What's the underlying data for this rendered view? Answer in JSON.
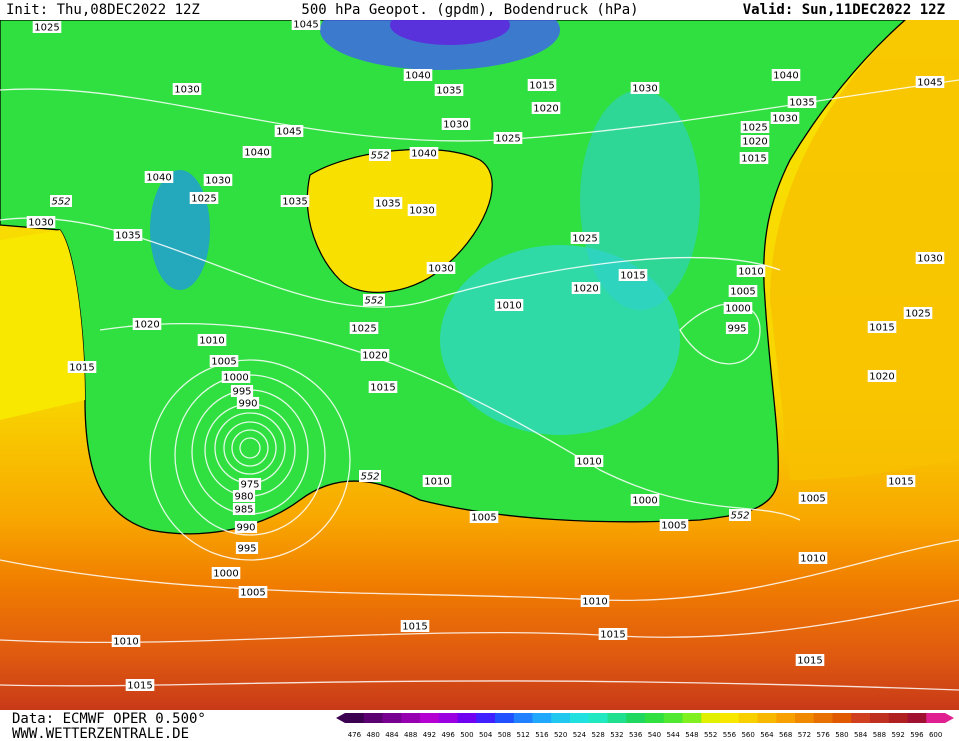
{
  "header": {
    "init": "Init: Thu,08DEC2022 12Z",
    "title": "500 hPa Geopot. (gpdm), Bodendruck (hPa)",
    "valid": "Valid: Sun,11DEC2022 12Z"
  },
  "footer": {
    "data": "Data: ECMWF OPER 0.500°",
    "site": "WWW.WETTERZENTRALE.DE"
  },
  "isobars": [
    1025,
    1030,
    1045,
    1040,
    1035,
    1030,
    1015,
    1020,
    1025,
    1030,
    1040,
    1035,
    1030,
    1025,
    1020,
    1015,
    1045,
    1045,
    1040,
    1040,
    1030,
    1025,
    1035,
    1035,
    1030,
    1040,
    1030,
    1035,
    1030,
    1025,
    1015,
    1020,
    1010,
    1005,
    1000,
    995,
    1010,
    1025,
    1020,
    1015,
    1020,
    1015,
    1010,
    1005,
    1000,
    995,
    990,
    975,
    980,
    985,
    990,
    995,
    1000,
    1005,
    1010,
    1015,
    1015,
    1010,
    1005,
    1010,
    1000,
    1005,
    1005,
    1010,
    1010,
    1015,
    1015,
    1015,
    1020,
    1015,
    1025,
    1030
  ],
  "geopotential_labels": [
    552,
    552,
    552,
    552,
    552
  ],
  "colorbar": {
    "labels": [
      476,
      480,
      484,
      488,
      492,
      496,
      500,
      504,
      508,
      512,
      516,
      520,
      524,
      528,
      532,
      536,
      540,
      544,
      548,
      552,
      556,
      560,
      564,
      568,
      572,
      576,
      580,
      584,
      588,
      592,
      596,
      600
    ],
    "colors": [
      "#3c0050",
      "#5a0070",
      "#780090",
      "#9600b0",
      "#b400d0",
      "#9a00e0",
      "#7000f0",
      "#4020ff",
      "#2050ff",
      "#2080ff",
      "#20a8ff",
      "#20c8f0",
      "#20e0e0",
      "#20e8c0",
      "#20e090",
      "#20d860",
      "#30e040",
      "#50e830",
      "#80f020",
      "#e0f000",
      "#f8e800",
      "#f8d000",
      "#f8b800",
      "#f8a000",
      "#f08800",
      "#e87000",
      "#e05800",
      "#d04020",
      "#c03020",
      "#b02020",
      "#a01030",
      "#e02090"
    ]
  }
}
